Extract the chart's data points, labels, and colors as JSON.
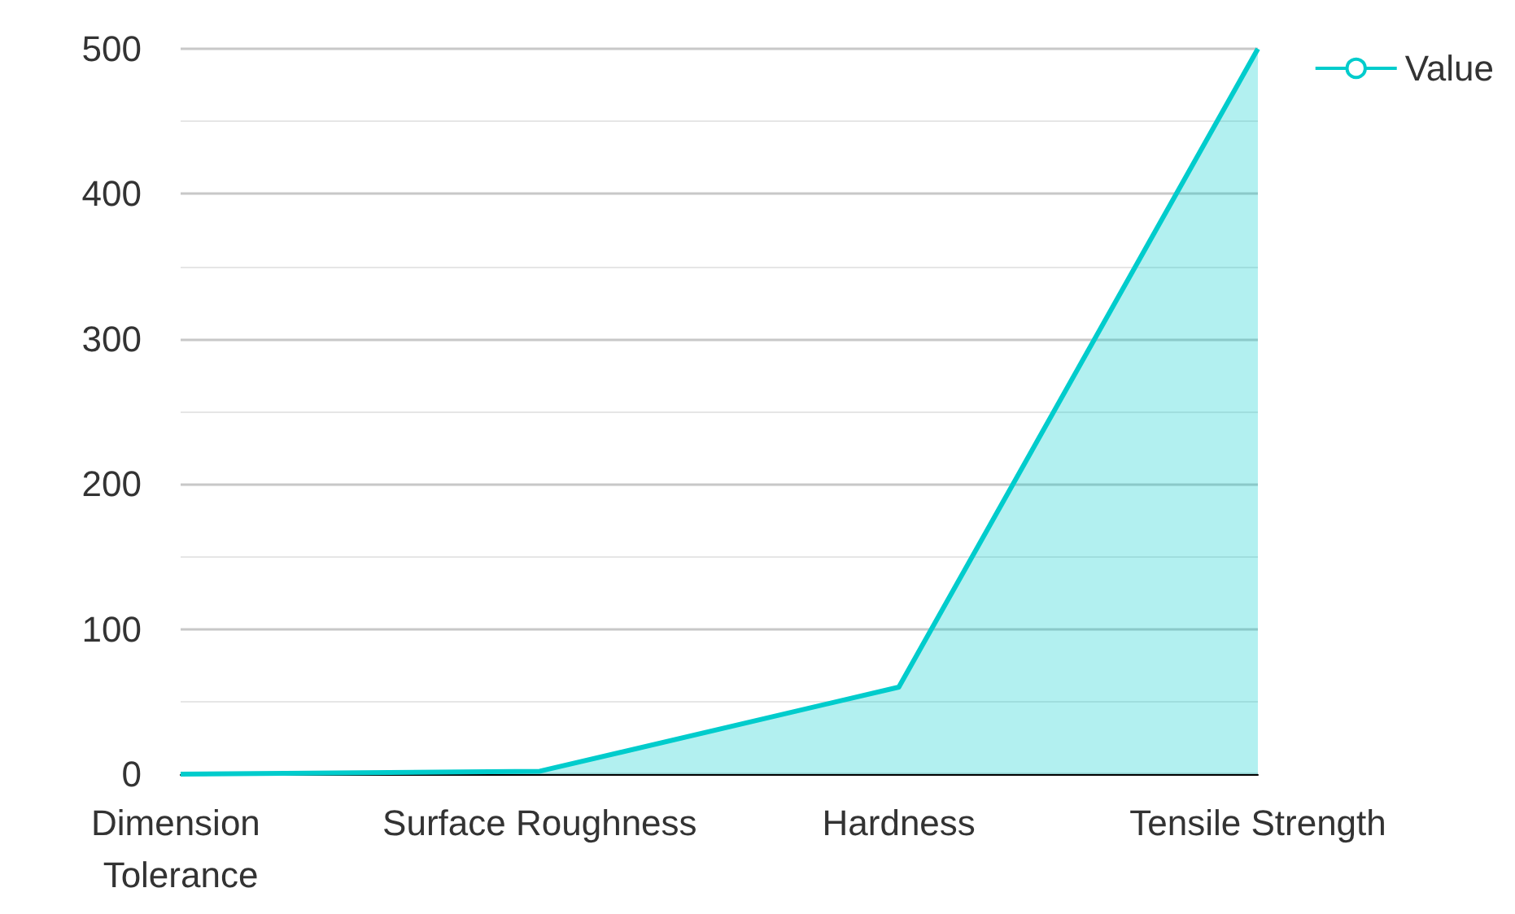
{
  "chart_data": {
    "type": "area",
    "categories": [
      "Dimension Tolerance",
      "Surface Roughness",
      "Hardness",
      "Tensile Strength"
    ],
    "series": [
      {
        "name": "Value",
        "color": "#00cccc",
        "values": [
          0,
          2,
          60,
          500
        ]
      }
    ],
    "ylim": [
      0,
      500
    ],
    "yticks": [
      0,
      100,
      200,
      300,
      400,
      500
    ],
    "grid": "y",
    "legend": "top right"
  }
}
